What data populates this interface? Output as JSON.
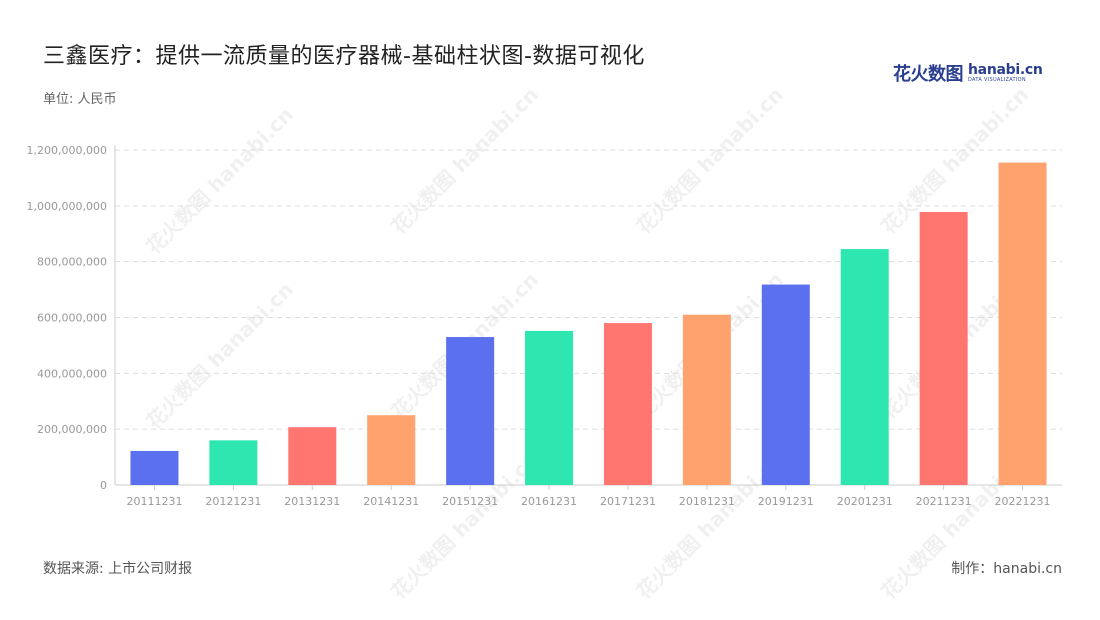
{
  "header": {
    "title": "三鑫医疗：提供一流质量的医疗器械-基础柱状图-数据可视化",
    "unit": "单位: 人民币"
  },
  "logo": {
    "cn": "花火数图",
    "en": "hanabi.cn",
    "en_sub": "DATA VISUALIZATION"
  },
  "footer": {
    "source": "数据来源: 上市公司财报",
    "credit": "制作：hanabi.cn"
  },
  "watermark": {
    "text": "花火数图 hanabi.cn"
  },
  "colors": {
    "palette": [
      "#5b70ee",
      "#2de6b0",
      "#ff7570",
      "#ffa26e"
    ],
    "grid": "#dddddd",
    "axis": "#cccccc",
    "tick": "#999999"
  },
  "chart_data": {
    "type": "bar",
    "categories": [
      "20111231",
      "20121231",
      "20131231",
      "20141231",
      "20151231",
      "20161231",
      "20171231",
      "20181231",
      "20191231",
      "20201231",
      "20211231",
      "20221231"
    ],
    "values": [
      122000000,
      160000000,
      207000000,
      250000000,
      530000000,
      552000000,
      580000000,
      610000000,
      718000000,
      845000000,
      978000000,
      1155000000
    ],
    "ylim": [
      0,
      1200000000
    ],
    "yticks": [
      "0",
      "200,000,000",
      "400,000,000",
      "600,000,000",
      "800,000,000",
      "1,000,000,000",
      "1,200,000,000"
    ],
    "grid": true
  }
}
